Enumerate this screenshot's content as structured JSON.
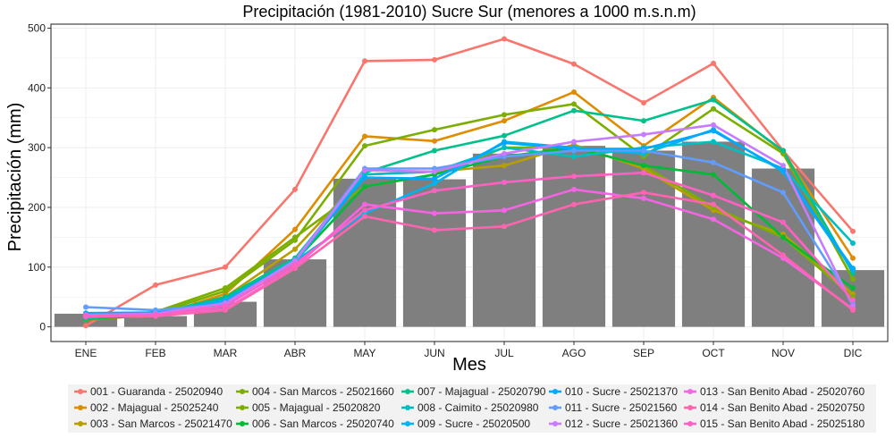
{
  "chart_data": {
    "type": "bar+line",
    "title": "Precipitación (1981-2010) Sucre Sur (menores a 1000 m.s.n.m)",
    "xlabel": "Mes",
    "ylabel": "Precipitación (mm)",
    "ylim": [
      0,
      500
    ],
    "yticks": [
      "0",
      "100",
      "200",
      "300",
      "400",
      "500"
    ],
    "categories": [
      "ENE",
      "FEB",
      "MAR",
      "ABR",
      "MAY",
      "JUN",
      "JUL",
      "AGO",
      "SEP",
      "OCT",
      "NOV",
      "DIC"
    ],
    "bars": [
      22,
      18,
      42,
      113,
      248,
      247,
      290,
      303,
      295,
      310,
      265,
      95
    ],
    "grid": true,
    "legend_position": "bottom",
    "series": [
      {
        "name": "001 - Guaranda - 25020940",
        "color": "#F8766D",
        "values": [
          2,
          70,
          100,
          230,
          445,
          447,
          482,
          440,
          375,
          441,
          295,
          160
        ]
      },
      {
        "name": "002 - Majagual - 25025240",
        "color": "#DE8C00",
        "values": [
          14,
          18,
          55,
          163,
          319,
          311,
          345,
          393,
          303,
          384,
          293,
          115
        ]
      },
      {
        "name": "003 - San Marcos - 25021470",
        "color": "#B79F00",
        "values": [
          12,
          20,
          50,
          130,
          255,
          260,
          270,
          305,
          265,
          195,
          155,
          55
        ]
      },
      {
        "name": "004 - San Marcos - 25021660",
        "color": "#7CAE00",
        "values": [
          15,
          25,
          65,
          150,
          235,
          255,
          300,
          300,
          270,
          200,
          150,
          50
        ]
      },
      {
        "name": "005 - Majagual - 25020820",
        "color": "#7CAE00",
        "values": [
          12,
          22,
          60,
          145,
          303,
          330,
          355,
          373,
          285,
          365,
          290,
          80
        ]
      },
      {
        "name": "006 - San Marcos - 25020740",
        "color": "#00BA38",
        "values": [
          13,
          20,
          48,
          110,
          235,
          255,
          285,
          300,
          270,
          255,
          150,
          65
        ]
      },
      {
        "name": "007 - Majagual - 25020790",
        "color": "#00C08B",
        "values": [
          14,
          22,
          50,
          115,
          258,
          295,
          320,
          362,
          345,
          380,
          295,
          90
        ]
      },
      {
        "name": "008 - Caimito - 25020980",
        "color": "#00BFC4",
        "values": [
          16,
          20,
          42,
          108,
          255,
          260,
          300,
          285,
          300,
          310,
          265,
          140
        ]
      },
      {
        "name": "009 - Sucre - 25020500",
        "color": "#00B4F0",
        "values": [
          20,
          22,
          45,
          110,
          190,
          240,
          310,
          300,
          290,
          330,
          260,
          95
        ]
      },
      {
        "name": "010 - Sucre - 25021370",
        "color": "#00A9FF",
        "values": [
          23,
          24,
          42,
          112,
          250,
          248,
          308,
          298,
          298,
          328,
          262,
          98
        ]
      },
      {
        "name": "011 - Sucre - 25021560",
        "color": "#619CFF",
        "values": [
          33,
          28,
          38,
          112,
          265,
          265,
          285,
          295,
          295,
          275,
          225,
          40
        ]
      },
      {
        "name": "012 - Sucre - 25021360",
        "color": "#C77CFF",
        "values": [
          20,
          22,
          40,
          110,
          262,
          260,
          290,
          310,
          322,
          338,
          270,
          35
        ]
      },
      {
        "name": "013 - San Benito Abad - 25020760",
        "color": "#F564E3",
        "values": [
          20,
          18,
          30,
          100,
          205,
          190,
          195,
          230,
          215,
          180,
          115,
          30
        ]
      },
      {
        "name": "014 - San Benito Abad - 25020750",
        "color": "#FF64B0",
        "values": [
          18,
          18,
          28,
          98,
          185,
          162,
          168,
          205,
          225,
          205,
          120,
          28
        ]
      },
      {
        "name": "015 - San Benito Abad - 25025180",
        "color": "#FF61C3",
        "values": [
          17,
          20,
          35,
          105,
          195,
          228,
          242,
          252,
          258,
          220,
          175,
          45
        ]
      }
    ]
  }
}
